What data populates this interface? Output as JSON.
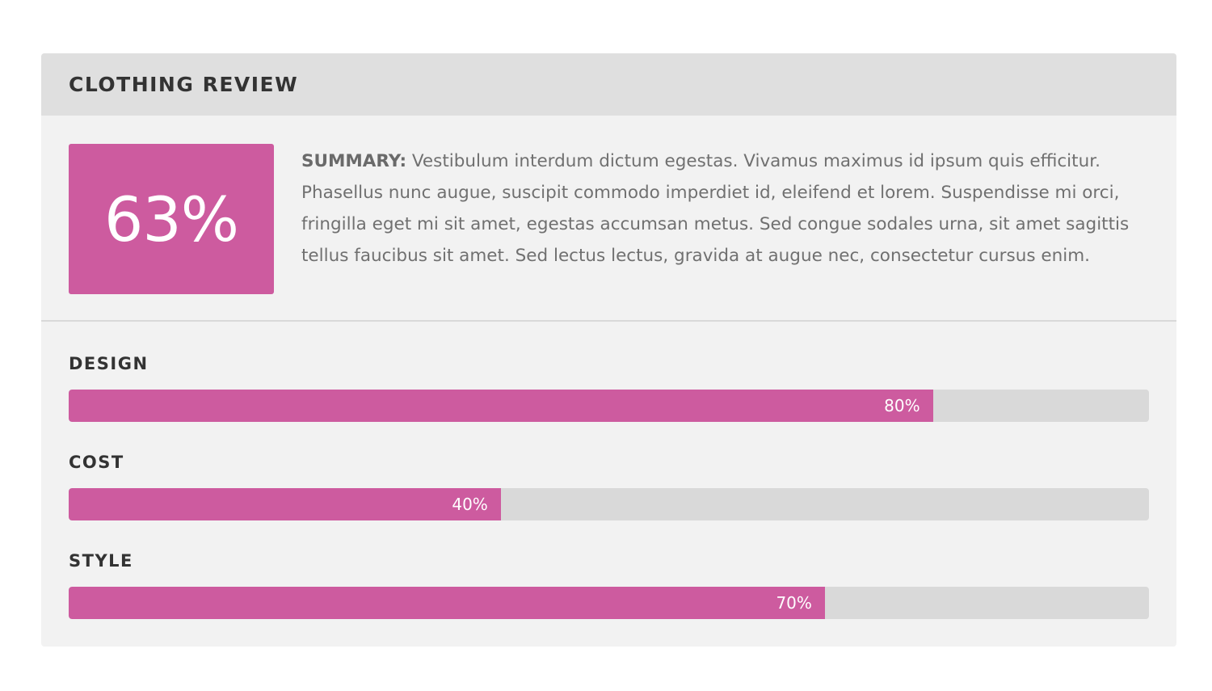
{
  "theme": {
    "accent": "#cd5b9f"
  },
  "review": {
    "title": "CLOTHING REVIEW",
    "overall_score": "63%",
    "summary_label": "SUMMARY:",
    "summary_text": " Vestibulum interdum dictum egestas. Vivamus maximus id ipsum quis efficitur. Phasellus nunc augue, suscipit commodo imperdiet id, eleifend et lorem. Suspendisse mi orci, fringilla eget mi sit amet, egestas accumsan metus. Sed congue sodales urna, sit amet sagittis tellus faucibus sit amet. Sed lectus lectus, gravida at augue nec, consectetur cursus enim.",
    "criteria": [
      {
        "label": "DESIGN",
        "value": 80,
        "value_label": "80%"
      },
      {
        "label": "COST",
        "value": 40,
        "value_label": "40%"
      },
      {
        "label": "STYLE",
        "value": 70,
        "value_label": "70%"
      }
    ]
  }
}
